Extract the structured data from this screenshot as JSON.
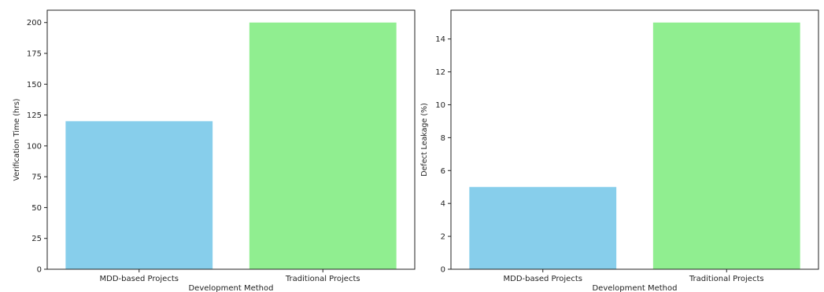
{
  "chart_data": [
    {
      "type": "bar",
      "categories": [
        "MDD-based Projects",
        "Traditional Projects"
      ],
      "values": [
        120,
        200
      ],
      "colors": [
        "#87CEEB",
        "#90EE90"
      ],
      "xlabel": "Development Method",
      "ylabel": "Verification Time (hrs)",
      "ylim": [
        0,
        210
      ],
      "yticks": [
        0,
        25,
        50,
        75,
        100,
        125,
        150,
        175,
        200
      ],
      "grid": false
    },
    {
      "type": "bar",
      "categories": [
        "MDD-based Projects",
        "Traditional Projects"
      ],
      "values": [
        5,
        15
      ],
      "colors": [
        "#87CEEB",
        "#90EE90"
      ],
      "xlabel": "Development Method",
      "ylabel": "Defect Leakage (%)",
      "ylim": [
        0,
        15.75
      ],
      "yticks": [
        0,
        2,
        4,
        6,
        8,
        10,
        12,
        14
      ],
      "grid": false
    }
  ]
}
